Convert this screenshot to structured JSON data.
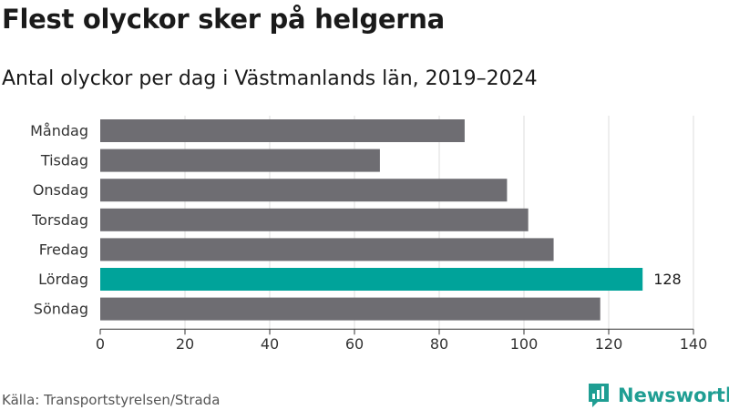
{
  "title": "Flest olyckor sker på helgerna",
  "subtitle": "Antal olyckor per dag i Västmanlands län, 2019–2024",
  "source": "Källa: Transportstyrelsen/Strada",
  "brand": "Newsworthy",
  "colors": {
    "bar": "#6e6d72",
    "highlight": "#00a39a",
    "grid": "#dddddd",
    "axis": "#333333",
    "brand": "#1f9e93"
  },
  "chart_data": {
    "type": "bar",
    "orientation": "horizontal",
    "categories": [
      "Måndag",
      "Tisdag",
      "Onsdag",
      "Torsdag",
      "Fredag",
      "Lördag",
      "Söndag"
    ],
    "values": [
      86,
      66,
      96,
      101,
      107,
      128,
      118
    ],
    "highlight_index": 5,
    "data_labels": [
      null,
      null,
      null,
      null,
      null,
      "128",
      null
    ],
    "xlim": [
      0,
      140
    ],
    "ticks": [
      0,
      20,
      40,
      60,
      80,
      100,
      120,
      140
    ],
    "grid": true,
    "legend": "none"
  }
}
